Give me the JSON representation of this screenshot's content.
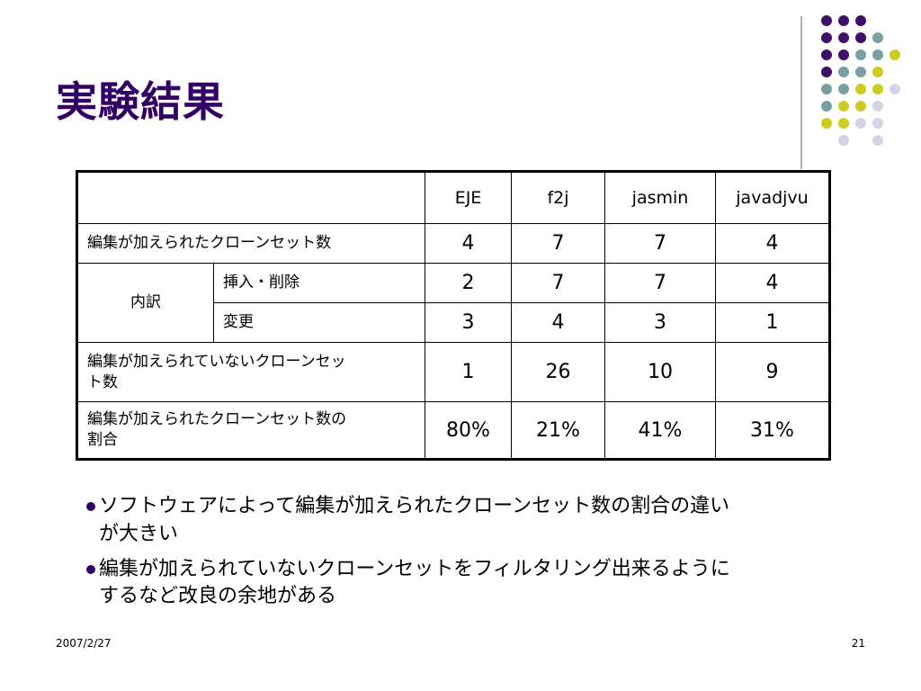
{
  "slide": {
    "title": "実験結果",
    "date": "2007/2/27",
    "page_number": "21"
  },
  "colors": {
    "title": "#330066",
    "dot_purple": "#3d1166",
    "dot_teal": "#7a9fa0",
    "dot_yellow": "#cccc22",
    "dot_lavender": "#d4d4e8"
  },
  "table": {
    "columns": [
      "EJE",
      "f2j",
      "jasmin",
      "javadjvu"
    ],
    "rows": {
      "edited_clone_sets": {
        "label": "編集が加えられたクローンセット数",
        "values": [
          "4",
          "7",
          "7",
          "4"
        ]
      },
      "breakdown": {
        "label": "内訳",
        "insert_delete": {
          "label": "挿入・削除",
          "values": [
            "2",
            "7",
            "7",
            "4"
          ]
        },
        "change": {
          "label": "変更",
          "values": [
            "3",
            "4",
            "3",
            "1"
          ]
        }
      },
      "unedited_clone_sets": {
        "label_line1": "編集が加えられていないクローンセッ",
        "label_line2": "ト数",
        "values": [
          "1",
          "26",
          "10",
          "9"
        ]
      },
      "edited_ratio": {
        "label_line1": "編集が加えられたクローンセット数の",
        "label_line2": "割合",
        "values": [
          "80%",
          "21%",
          "41%",
          "31%"
        ]
      }
    }
  },
  "bullets": [
    {
      "line1": "ソフトウェアによって編集が加えられたクローンセット数の割合の違い",
      "line2": "が大きい"
    },
    {
      "line1": "編集が加えられていないクローンセットをフィルタリング出来るように",
      "line2": "するなど改良の余地がある"
    }
  ]
}
